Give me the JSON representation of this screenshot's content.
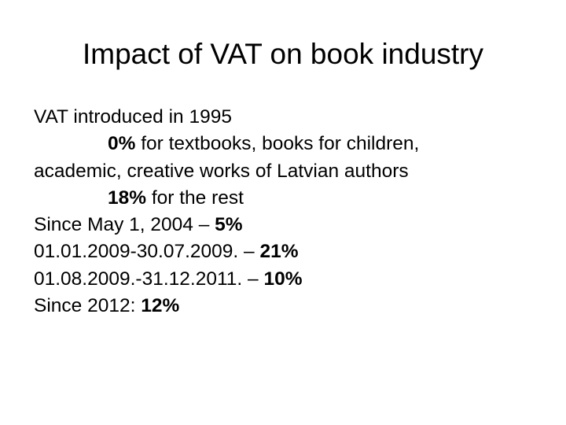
{
  "title": "Impact of VAT on book industry",
  "lines": [
    {
      "text": "VAT introduced in 1995"
    },
    {
      "bold": "0%",
      "text": " for textbooks, books for children,"
    },
    {
      "text": "academic, creative works of Latvian authors"
    },
    {
      "bold": "18%",
      "text": " for the rest"
    },
    {
      "text": "Since May 1, 2004 – ",
      "bold": "5%"
    },
    {
      "text": "01.01.2009-30.07.2009. – ",
      "bold": "21%"
    },
    {
      "text": "01.08.2009.-31.12.2011. – ",
      "bold": "10%"
    },
    {
      "text": "Since 2012: ",
      "bold": "12%"
    }
  ]
}
